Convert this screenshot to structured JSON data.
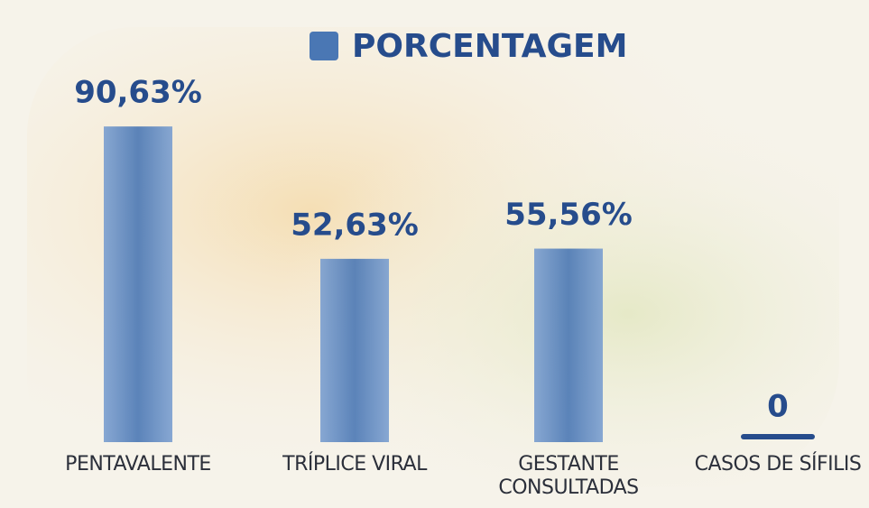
{
  "chart_data": {
    "type": "bar",
    "legend": "PORCENTAGEM",
    "categories": [
      "PENTAVALENTE",
      "TRÍPLICE VIRAL",
      "GESTANTE CONSULTADAS",
      "CASOS DE SÍFILIS"
    ],
    "values": [
      90.63,
      52.63,
      55.56,
      0
    ],
    "value_labels": [
      "90,63%",
      "52,63%",
      "55,56%",
      "0"
    ],
    "color": "#4a77b4"
  }
}
